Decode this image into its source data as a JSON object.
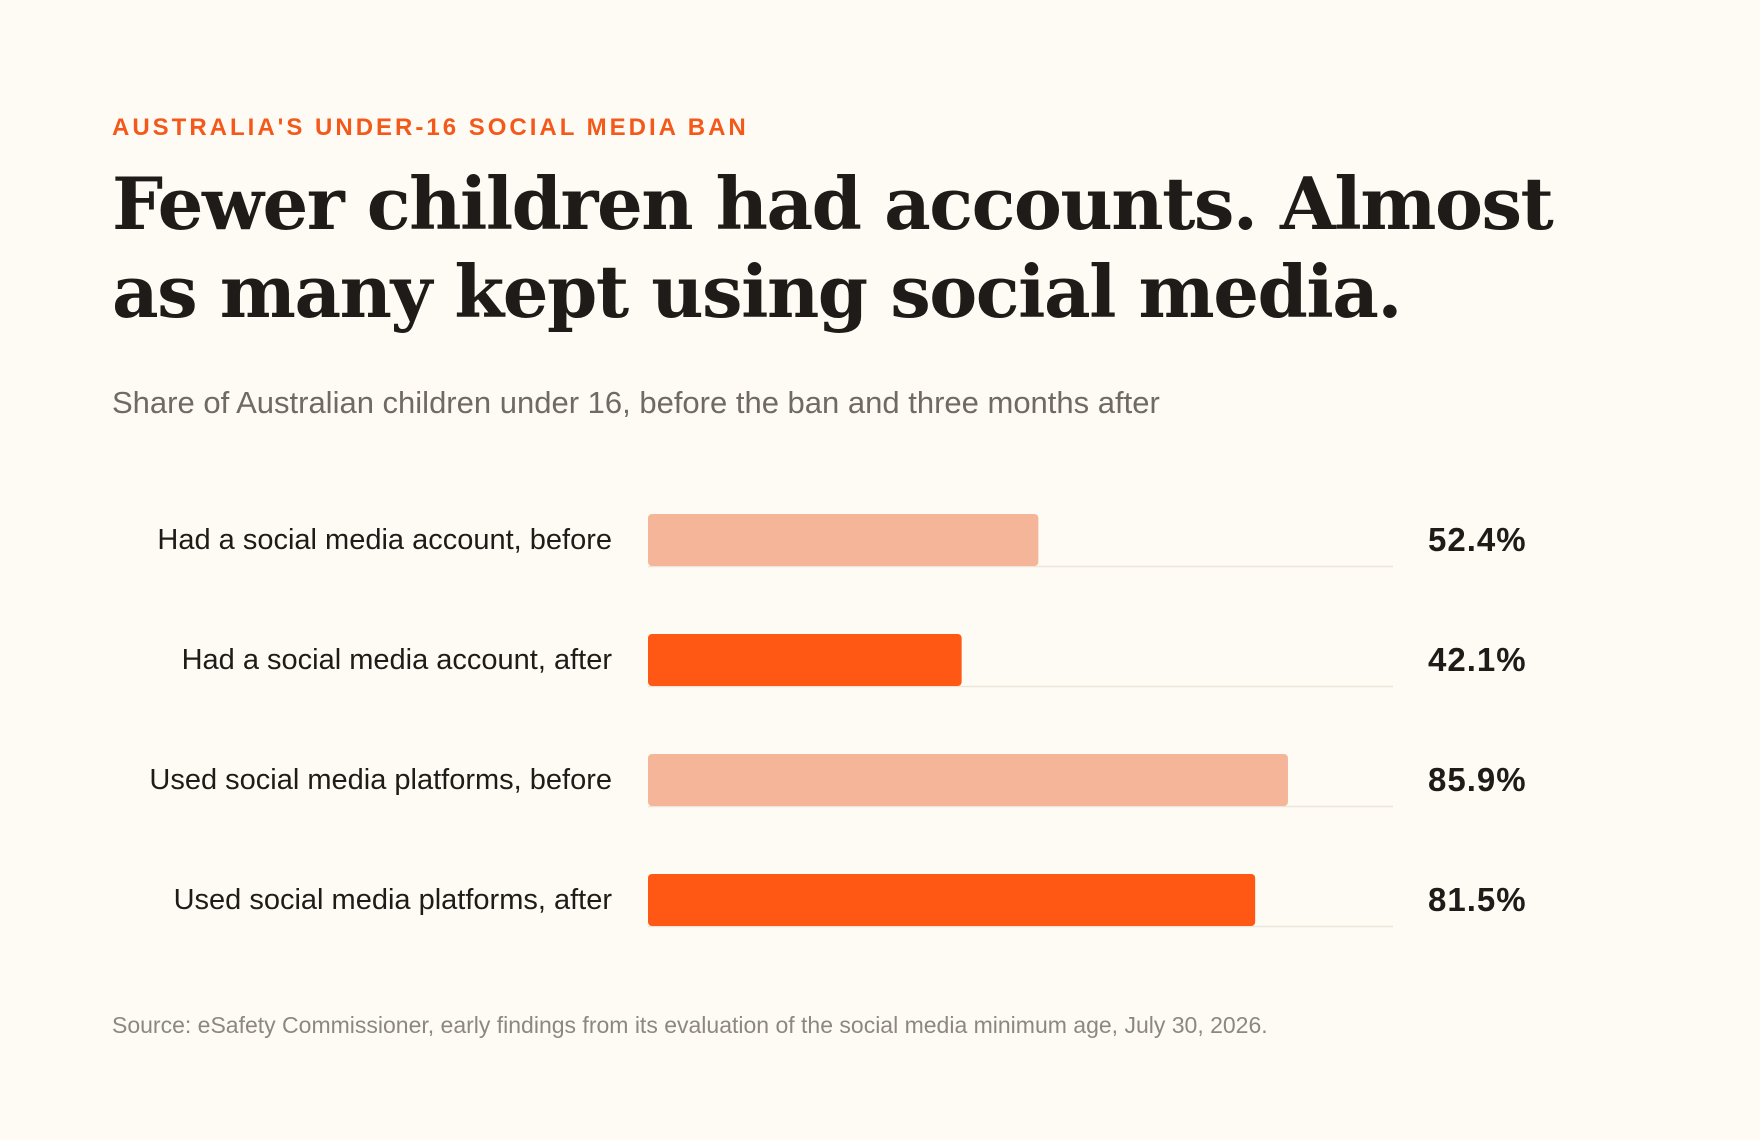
{
  "chart_data": {
    "type": "bar",
    "orientation": "horizontal",
    "kicker": "AUSTRALIA'S UNDER-16 SOCIAL MEDIA BAN",
    "title": "Fewer children had accounts. Almost as many kept using social media.",
    "subtitle": "Share of Australian children under 16, before the ban and three months after",
    "categories": [
      "Had a social media account, before",
      "Had a social media account, after",
      "Used social media platforms, before",
      "Used social media platforms, after"
    ],
    "values": [
      52.4,
      42.1,
      85.9,
      81.5
    ],
    "value_labels": [
      "52.4%",
      "42.1%",
      "85.9%",
      "81.5%"
    ],
    "colors": [
      "#f4b599",
      "#ff5714",
      "#f4b599",
      "#ff5714"
    ],
    "xlim": [
      0,
      100
    ],
    "source": "Source: eSafety Commissioner, early findings from its evaluation of the social media minimum age, July 30, 2026."
  }
}
